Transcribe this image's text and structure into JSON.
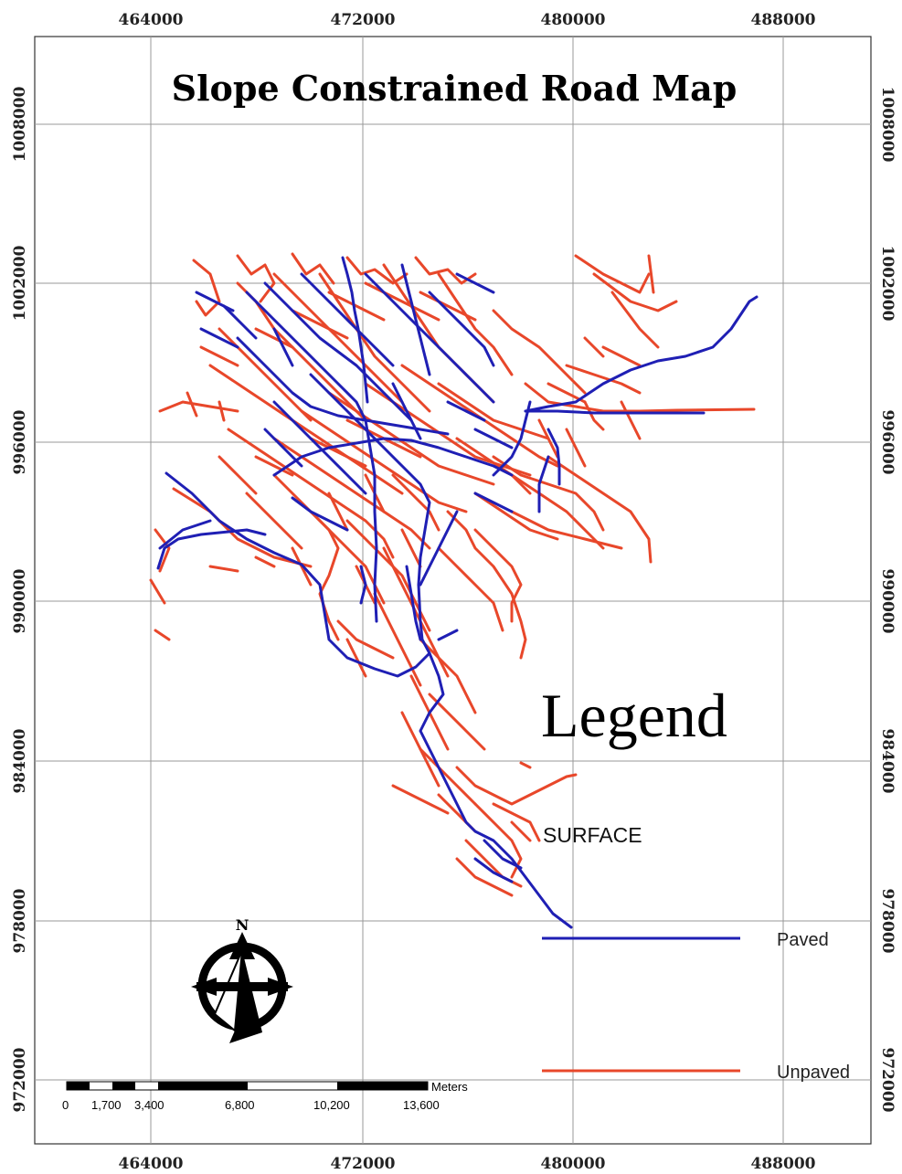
{
  "map": {
    "title": "Slope Constrained Road Map",
    "x_ticks": [
      "464000",
      "472000",
      "480000",
      "488000"
    ],
    "y_ticks": [
      "1008000",
      "1002000",
      "996000",
      "990000",
      "984000",
      "978000",
      "972000"
    ]
  },
  "legend": {
    "heading": "Legend",
    "field": "SURFACE",
    "items": [
      {
        "label": "Paved",
        "color": "#1f1fb4"
      },
      {
        "label": "Unpaved",
        "color": "#e8472a"
      }
    ]
  },
  "scale_bar": {
    "unit": "Meters",
    "labels": [
      "0",
      "1,700",
      "3,400",
      "6,800",
      "10,200",
      "13,600"
    ]
  },
  "north_arrow": {
    "letter": "N",
    "icon": "north-arrow-icon"
  },
  "colors": {
    "paved": "#1f1fb4",
    "unpaved": "#e8472a",
    "grid": "#999999"
  }
}
